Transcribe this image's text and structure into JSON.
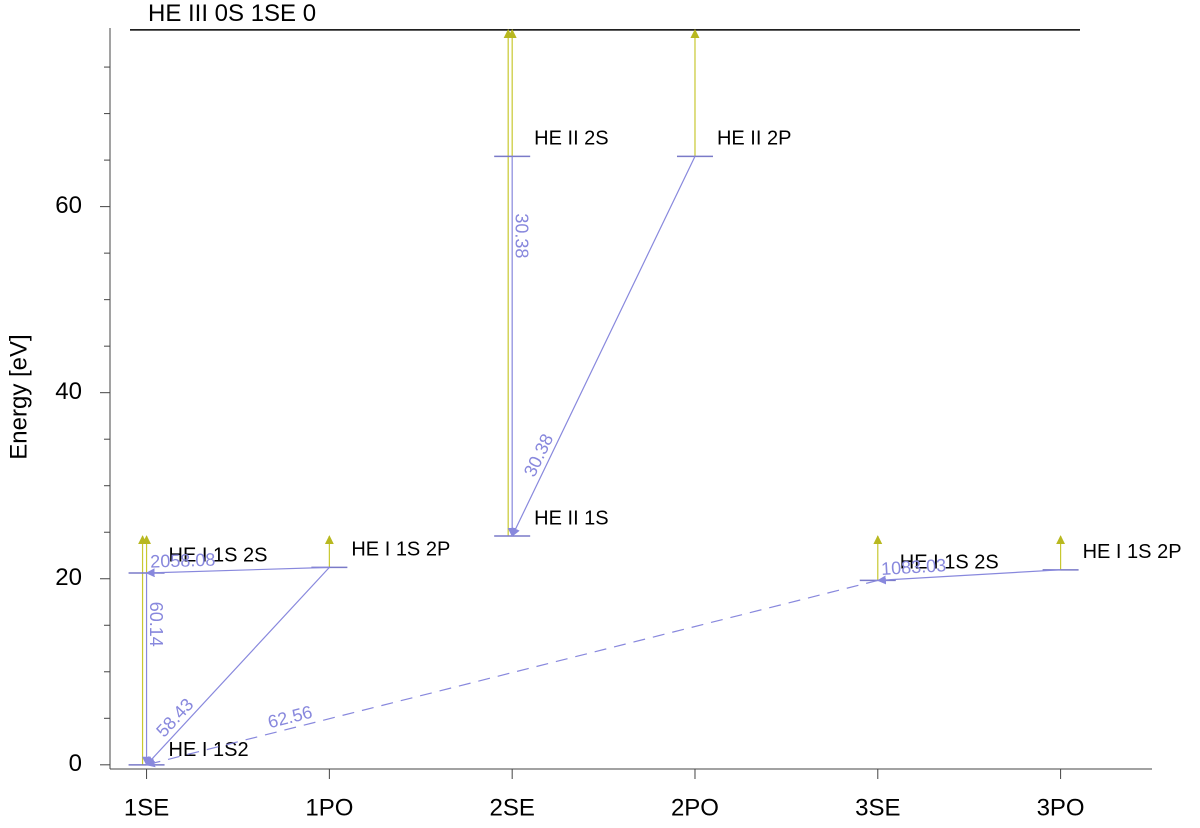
{
  "chart_data": {
    "type": "grotrian",
    "ylabel": "Energy [eV]",
    "categories": [
      "1SE",
      "1PO",
      "2SE",
      "2PO",
      "3SE",
      "3PO"
    ],
    "xlim": [
      -0.2,
      5.5
    ],
    "ylim": [
      -0.45,
      79.2
    ],
    "yticks": [
      0,
      20,
      40,
      60
    ],
    "yminorticks": [
      5,
      10,
      15,
      25,
      30,
      35,
      45,
      50,
      55,
      65,
      70,
      75
    ],
    "limit": {
      "label": "HE III 0S 1SE 0",
      "energy": 79.0
    },
    "levels": [
      {
        "label": "HE I 1S2",
        "column": 0,
        "energy": 0,
        "limit": 24.59
      },
      {
        "label": "HE I 1S 2S",
        "column": 0,
        "energy": 20.62,
        "limit": 24.59
      },
      {
        "label": "HE I 1S 2P",
        "column": 1,
        "energy": 21.22,
        "limit": 24.59
      },
      {
        "label": "HE II 1S",
        "column": 2,
        "energy": 24.59,
        "limit": 79.0
      },
      {
        "label": "HE II 2S",
        "column": 2,
        "energy": 65.4,
        "limit": 79.0
      },
      {
        "label": "HE II 2P",
        "column": 3,
        "energy": 65.4,
        "limit": 79.0
      },
      {
        "label": "HE I 1S 2S",
        "column": 4,
        "energy": 19.82,
        "limit": 24.59
      },
      {
        "label": "HE I 1S 2P",
        "column": 5,
        "energy": 20.96,
        "limit": 24.59
      }
    ],
    "transitions": [
      {
        "from": 4,
        "to": 3,
        "wavelength": 30.38,
        "dashed": false
      },
      {
        "from": 5,
        "to": 3,
        "wavelength": 30.38,
        "dashed": false
      },
      {
        "from": 1,
        "to": 0,
        "wavelength": 60.14,
        "dashed": false
      },
      {
        "from": 2,
        "to": 1,
        "wavelength": 2058.08,
        "dashed": false
      },
      {
        "from": 2,
        "to": 0,
        "wavelength": 58.43,
        "dashed": false
      },
      {
        "from": 6,
        "to": 0,
        "wavelength": 62.56,
        "dashed": true
      },
      {
        "from": 7,
        "to": 6,
        "wavelength": 1083.03,
        "dashed": false
      }
    ],
    "level_color": "#7a7ac8",
    "transition_color": "#8888dd",
    "ionization_color": "#c8c830"
  }
}
